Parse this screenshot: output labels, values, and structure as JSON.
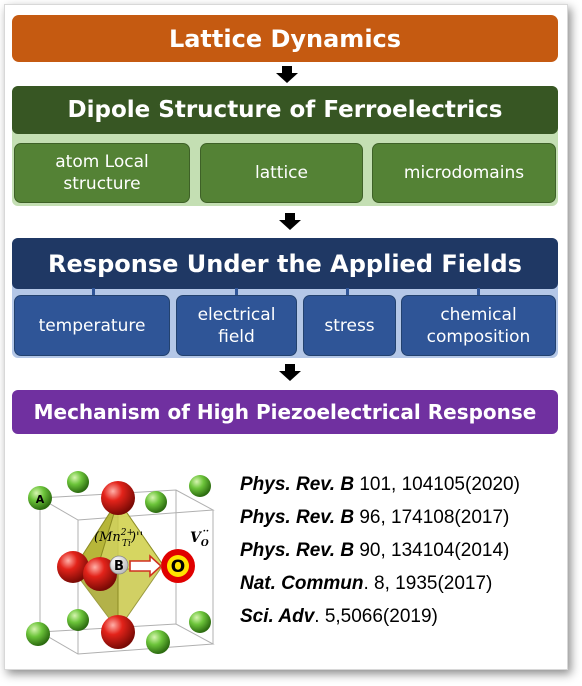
{
  "diagram": {
    "title": "Lattice Dynamics",
    "dipole": {
      "title": "Dipole Structure of Ferroelectrics",
      "items": [
        "atom Local\nstructure",
        "lattice",
        "microdomains"
      ]
    },
    "response": {
      "title": "Response Under the Applied Fields",
      "items": [
        "temperature",
        "electrical\nfield",
        "stress",
        "chemical\ncomposition"
      ]
    },
    "mechanism": {
      "title": "Mechanism of High Piezoelectrical Response"
    }
  },
  "crystal": {
    "label_site": "A",
    "label_center": "B",
    "label_defect": "(Mn",
    "label_defect_sup": "2+",
    "label_defect_sub": "Ti",
    "label_defect_tail": ")''",
    "label_vacancy": "V",
    "label_vacancy_sub": "O",
    "label_vacancy_sup": "··",
    "label_oxygen": "O"
  },
  "references": [
    {
      "journal": "Phys. Rev. B",
      "detail": " 101, 104105(2020)"
    },
    {
      "journal": "Phys. Rev. B",
      "detail": " 96, 174108(2017)"
    },
    {
      "journal": "Phys. Rev. B",
      "detail": " 90, 134104(2014)"
    },
    {
      "journal": "Nat. Commun",
      "detail": ". 8, 1935(2017)"
    },
    {
      "journal": "Sci. Adv",
      "detail": ". 5,5066(2019)"
    }
  ],
  "colors": {
    "orange": "#c55a11",
    "dark_green": "#375623",
    "green": "#548235",
    "navy": "#1f3864",
    "blue": "#2f5597",
    "purple": "#7030a0"
  }
}
